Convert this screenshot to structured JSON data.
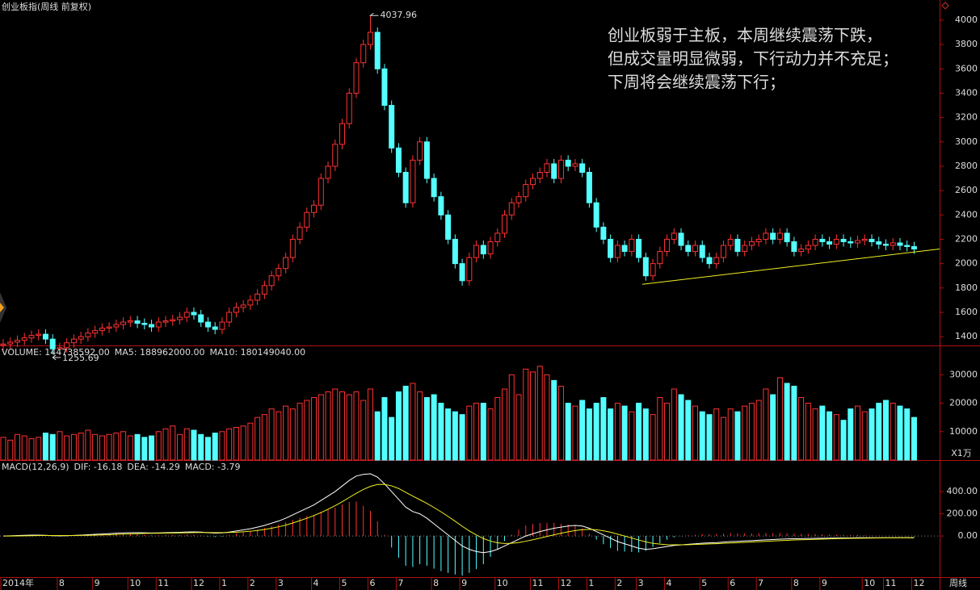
{
  "chart_data": [
    {
      "type": "candlestick",
      "title": "创业板指(周线 前复权)",
      "period": "周线",
      "up_color": "#ff3232",
      "down_color": "#54ffff",
      "categories": [
        "2014年",
        null,
        null,
        null,
        null,
        null,
        null,
        null,
        "8",
        null,
        null,
        null,
        null,
        "9",
        null,
        null,
        null,
        null,
        "10",
        null,
        null,
        null,
        "11",
        null,
        null,
        null,
        null,
        "12",
        null,
        null,
        null,
        "1",
        null,
        null,
        null,
        "2",
        null,
        null,
        null,
        "3",
        null,
        null,
        null,
        null,
        "4",
        null,
        null,
        null,
        "5",
        null,
        null,
        null,
        "6",
        null,
        null,
        null,
        "7",
        null,
        null,
        null,
        null,
        "8",
        null,
        null,
        null,
        "9",
        null,
        null,
        null,
        null,
        "10",
        null,
        null,
        null,
        null,
        "11",
        null,
        null,
        null,
        "12",
        null,
        null,
        null,
        "1",
        null,
        null,
        null,
        "2",
        null,
        null,
        "3",
        null,
        null,
        null,
        "4",
        null,
        null,
        null,
        null,
        "5",
        null,
        null,
        null,
        "6",
        null,
        null,
        null,
        "7",
        null,
        null,
        null,
        null,
        "8",
        null,
        null,
        null,
        "9",
        null,
        null,
        null,
        null,
        null,
        "10",
        null,
        null,
        "11",
        null,
        null,
        null,
        "12"
      ],
      "open": [
        1330,
        1340,
        1355,
        1370,
        1390,
        1410,
        1420,
        1380,
        1300,
        1310,
        1350,
        1380,
        1400,
        1430,
        1450,
        1470,
        1480,
        1500,
        1520,
        1530,
        1510,
        1500,
        1480,
        1520,
        1530,
        1540,
        1560,
        1600,
        1580,
        1520,
        1480,
        1460,
        1520,
        1600,
        1640,
        1660,
        1700,
        1750,
        1820,
        1900,
        1960,
        2050,
        2200,
        2300,
        2420,
        2480,
        2700,
        2800,
        2980,
        3150,
        3400,
        3650,
        3800,
        3900,
        3600,
        3300,
        2950,
        2750,
        2500,
        2850,
        3000,
        2700,
        2550,
        2400,
        2200,
        2000,
        1860,
        2050,
        2150,
        2080,
        2180,
        2250,
        2400,
        2500,
        2550,
        2650,
        2700,
        2750,
        2820,
        2700,
        2850,
        2800,
        2820,
        2750,
        2500,
        2300,
        2200,
        2050,
        2150,
        2100,
        2200,
        2050,
        1900,
        2000,
        2100,
        2200,
        2250,
        2150,
        2100,
        2150,
        2050,
        2000,
        2050,
        2150,
        2200,
        2100,
        2150,
        2180,
        2200,
        2250,
        2200,
        2250,
        2180,
        2100,
        2120,
        2150,
        2200,
        2180,
        2160,
        2200,
        2180,
        2170,
        2190,
        2200,
        2180,
        2160,
        2150,
        2170,
        2150,
        2140
      ],
      "high": [
        1380,
        1395,
        1410,
        1430,
        1450,
        1460,
        1460,
        1420,
        1350,
        1390,
        1420,
        1440,
        1470,
        1490,
        1510,
        1520,
        1540,
        1560,
        1570,
        1570,
        1550,
        1540,
        1560,
        1570,
        1580,
        1600,
        1640,
        1640,
        1620,
        1560,
        1520,
        1560,
        1640,
        1680,
        1700,
        1740,
        1790,
        1860,
        1940,
        2000,
        2090,
        2240,
        2340,
        2460,
        2520,
        2740,
        2840,
        3020,
        3190,
        3440,
        3690,
        3840,
        4037.96,
        3940,
        3640,
        3340,
        2990,
        2790,
        2890,
        3040,
        3040,
        2740,
        2590,
        2440,
        2240,
        2040,
        2090,
        2190,
        2190,
        2220,
        2290,
        2440,
        2540,
        2590,
        2690,
        2740,
        2790,
        2860,
        2860,
        2890,
        2890,
        2860,
        2860,
        2790,
        2540,
        2340,
        2240,
        2190,
        2190,
        2240,
        2240,
        2090,
        2040,
        2140,
        2240,
        2290,
        2290,
        2190,
        2190,
        2190,
        2090,
        2090,
        2190,
        2240,
        2240,
        2190,
        2220,
        2240,
        2290,
        2290,
        2290,
        2290,
        2220,
        2160,
        2190,
        2240,
        2240,
        2220,
        2240,
        2240,
        2220,
        2230,
        2240,
        2240,
        2220,
        2200,
        2210,
        2210,
        2190,
        2180
      ],
      "low": [
        1290,
        1300,
        1315,
        1330,
        1350,
        1370,
        1340,
        1255.69,
        1260,
        1270,
        1310,
        1340,
        1360,
        1390,
        1410,
        1430,
        1440,
        1460,
        1480,
        1470,
        1460,
        1440,
        1440,
        1480,
        1490,
        1500,
        1520,
        1540,
        1480,
        1440,
        1420,
        1420,
        1480,
        1560,
        1600,
        1620,
        1660,
        1710,
        1780,
        1860,
        1920,
        2010,
        2160,
        2260,
        2380,
        2440,
        2660,
        2760,
        2940,
        3110,
        3360,
        3610,
        3760,
        3560,
        3260,
        2910,
        2710,
        2460,
        2460,
        2810,
        2660,
        2510,
        2360,
        2160,
        1960,
        1820,
        1820,
        2010,
        2040,
        2040,
        2140,
        2210,
        2360,
        2460,
        2510,
        2610,
        2660,
        2710,
        2660,
        2660,
        2760,
        2760,
        2710,
        2460,
        2260,
        2160,
        2010,
        2010,
        2060,
        2060,
        2010,
        1860,
        1860,
        1960,
        2060,
        2160,
        2110,
        2060,
        2060,
        2010,
        1960,
        1960,
        2010,
        2110,
        2060,
        2060,
        2110,
        2140,
        2160,
        2160,
        2160,
        2140,
        2060,
        2060,
        2080,
        2110,
        2140,
        2120,
        2120,
        2140,
        2130,
        2130,
        2150,
        2140,
        2120,
        2110,
        2110,
        2110,
        2100,
        2080
      ],
      "close": [
        1340,
        1355,
        1370,
        1390,
        1410,
        1420,
        1380,
        1300,
        1310,
        1350,
        1380,
        1400,
        1430,
        1450,
        1470,
        1480,
        1500,
        1520,
        1530,
        1510,
        1500,
        1480,
        1520,
        1530,
        1540,
        1560,
        1600,
        1580,
        1520,
        1480,
        1460,
        1520,
        1600,
        1640,
        1660,
        1700,
        1750,
        1820,
        1900,
        1960,
        2050,
        2200,
        2300,
        2420,
        2480,
        2700,
        2800,
        2980,
        3150,
        3400,
        3650,
        3800,
        3900,
        3600,
        3300,
        2950,
        2750,
        2500,
        2850,
        3000,
        2700,
        2550,
        2400,
        2200,
        2000,
        1860,
        2050,
        2150,
        2080,
        2180,
        2250,
        2400,
        2500,
        2550,
        2650,
        2700,
        2750,
        2820,
        2700,
        2850,
        2800,
        2820,
        2750,
        2500,
        2300,
        2200,
        2050,
        2150,
        2100,
        2200,
        2050,
        1900,
        2000,
        2100,
        2200,
        2250,
        2150,
        2100,
        2150,
        2050,
        2000,
        2050,
        2150,
        2200,
        2100,
        2150,
        2180,
        2200,
        2250,
        2200,
        2250,
        2180,
        2100,
        2120,
        2150,
        2200,
        2180,
        2160,
        2200,
        2180,
        2170,
        2190,
        2200,
        2180,
        2160,
        2150,
        2170,
        2150,
        2140,
        2120
      ],
      "ylim": [
        1328,
        4086
      ],
      "yticks": [
        1400,
        1600,
        1800,
        2000,
        2200,
        2400,
        2600,
        2800,
        3000,
        3200,
        3400,
        3600,
        3800,
        4000
      ],
      "annotation": [
        "创业板弱于主板，本周继续震荡下跌，",
        "但成交量明显微弱，下行动力并不充足；",
        "下周将会继续震荡下行；"
      ],
      "annotation_color": "#f0f020",
      "trend_line": {
        "x": [
          90.5,
          132.6
        ],
        "values": [
          1830,
          2120
        ],
        "color": "#f0f020"
      }
    },
    {
      "type": "bar",
      "header": [
        {
          "text": "VOLUME: 144738592.00",
          "color": "#dddddd"
        },
        {
          "text": "MA5: 188962000.00",
          "color": "#dddddd"
        },
        {
          "text": "MA10: 180149040.00",
          "color": "#f0f020"
        }
      ],
      "values": [
        8000,
        7000,
        9000,
        8500,
        7500,
        8000,
        9500,
        9000,
        10000,
        8500,
        9000,
        9500,
        10500,
        9000,
        8500,
        9000,
        9500,
        10000,
        8500,
        9000,
        8000,
        8500,
        10000,
        11000,
        12000,
        9000,
        11000,
        10500,
        9000,
        8000,
        9500,
        10000,
        11000,
        11500,
        12000,
        13000,
        15000,
        16000,
        18000,
        17000,
        19000,
        18000,
        20000,
        21000,
        22000,
        23000,
        24000,
        25000,
        24000,
        23000,
        24000,
        21000,
        25000,
        17000,
        22000,
        15000,
        24000,
        26000,
        27000,
        24000,
        22000,
        23000,
        20000,
        18000,
        17000,
        16000,
        19000,
        20000,
        20000,
        18000,
        22000,
        25000,
        30000,
        23000,
        32000,
        31000,
        33000,
        30000,
        28000,
        26000,
        20000,
        19000,
        21000,
        18000,
        20000,
        22000,
        18000,
        20000,
        19000,
        17000,
        20000,
        18000,
        16000,
        22000,
        20000,
        25000,
        23000,
        21000,
        19000,
        17000,
        16000,
        18000,
        15000,
        18000,
        17000,
        19000,
        20000,
        21000,
        25000,
        23000,
        29000,
        27000,
        26000,
        22000,
        20000,
        18000,
        19000,
        17000,
        16000,
        14000,
        18000,
        19000,
        17000,
        18000,
        20000,
        21000,
        20000,
        19000,
        18000,
        15000
      ],
      "ylim": [
        0,
        35500
      ],
      "yticks": [
        10000,
        20000,
        30000
      ],
      "unit": "X1万"
    },
    {
      "type": "macd",
      "header": [
        {
          "text": "MACD(12,26,9)",
          "color": "#dddddd"
        },
        {
          "text": "DIF: -16.18",
          "color": "#dddddd"
        },
        {
          "text": "DEA: -14.29",
          "color": "#f0f020"
        },
        {
          "text": "MACD: -3.79",
          "color": "#ff40ff"
        }
      ],
      "series": [
        {
          "color": "#ffffff",
          "values": [
            0,
            2,
            4,
            6,
            8,
            8,
            6,
            3,
            2,
            3,
            5,
            8,
            12,
            15,
            18,
            22,
            25,
            28,
            30,
            30,
            29,
            27,
            28,
            30,
            32,
            33,
            36,
            37,
            35,
            30,
            26,
            28,
            35,
            45,
            55,
            65,
            80,
            95,
            115,
            135,
            160,
            190,
            220,
            250,
            280,
            320,
            360,
            400,
            450,
            500,
            540,
            555,
            560,
            530,
            470,
            400,
            330,
            260,
            220,
            200,
            160,
            110,
            60,
            10,
            -40,
            -90,
            -120,
            -140,
            -150,
            -140,
            -120,
            -90,
            -60,
            -30,
            0,
            20,
            40,
            55,
            70,
            80,
            90,
            95,
            90,
            70,
            40,
            10,
            -20,
            -50,
            -70,
            -90,
            -110,
            -120,
            -115,
            -105,
            -95,
            -85,
            -80,
            -75,
            -70,
            -65,
            -62,
            -60,
            -55,
            -50,
            -48,
            -45,
            -42,
            -38,
            -35,
            -32,
            -28,
            -26,
            -25,
            -24,
            -22,
            -21,
            -20,
            -19,
            -18,
            -17,
            -17,
            -16,
            -16,
            -16,
            -16,
            -16,
            -16,
            -16,
            -16,
            -16.18
          ]
        },
        {
          "color": "#f0f020",
          "values": [
            0,
            0,
            1,
            2,
            3,
            4,
            4,
            4,
            4,
            4,
            4,
            5,
            6,
            8,
            10,
            12,
            14,
            17,
            19,
            21,
            23,
            24,
            25,
            26,
            27,
            28,
            29,
            31,
            32,
            32,
            31,
            31,
            32,
            34,
            38,
            43,
            50,
            59,
            70,
            83,
            98,
            117,
            138,
            160,
            184,
            211,
            241,
            273,
            308,
            347,
            385,
            419,
            447,
            464,
            465,
            452,
            428,
            394,
            359,
            327,
            294,
            257,
            218,
            176,
            133,
            88,
            46,
            9,
            -23,
            -46,
            -61,
            -67,
            -66,
            -59,
            -47,
            -34,
            -19,
            -4,
            11,
            25,
            38,
            49,
            57,
            60,
            56,
            47,
            34,
            17,
            0,
            -18,
            -36,
            -53,
            -66,
            -73,
            -78,
            -79,
            -79,
            -78,
            -76,
            -74,
            -71,
            -69,
            -66,
            -63,
            -60,
            -57,
            -54,
            -51,
            -48,
            -45,
            -42,
            -39,
            -36,
            -34,
            -32,
            -30,
            -28,
            -26,
            -24,
            -22,
            -21,
            -20,
            -19,
            -18,
            -17,
            -16,
            -15.5,
            -15,
            -14.6,
            -14.29
          ]
        }
      ],
      "macd": [
        0,
        4,
        6,
        8,
        10,
        8,
        4,
        -2,
        -4,
        -2,
        2,
        6,
        12,
        14,
        16,
        20,
        22,
        22,
        22,
        18,
        12,
        6,
        6,
        8,
        10,
        10,
        14,
        12,
        6,
        -4,
        -10,
        -6,
        6,
        22,
        34,
        44,
        60,
        72,
        90,
        104,
        124,
        146,
        164,
        180,
        192,
        218,
        238,
        254,
        284,
        306,
        310,
        272,
        226,
        132,
        10,
        -104,
        -196,
        -268,
        -278,
        -254,
        -268,
        -294,
        -316,
        -332,
        -346,
        -356,
        -332,
        -298,
        -254,
        -188,
        -118,
        -46,
        12,
        58,
        94,
        108,
        118,
        118,
        118,
        110,
        104,
        92,
        66,
        20,
        -32,
        -74,
        -108,
        -134,
        -140,
        -144,
        -148,
        -134,
        -98,
        -64,
        -34,
        -12,
        -2,
        6,
        12,
        18,
        18,
        18,
        22,
        26,
        24,
        24,
        24,
        26,
        26,
        26,
        28,
        26,
        22,
        20,
        20,
        18,
        16,
        14,
        12,
        10,
        8,
        8,
        6,
        4,
        2,
        0,
        -1,
        -2,
        -2.8,
        -3.79
      ],
      "up_color": "#ff3232",
      "down_color": "#54ffff",
      "ylim": [
        -370,
        575
      ],
      "yticks": [
        {
          "value": 0,
          "label": "0.00"
        },
        {
          "value": 200,
          "label": "200.00"
        },
        {
          "value": 400,
          "label": "400.00"
        }
      ],
      "zero_line": true
    }
  ]
}
